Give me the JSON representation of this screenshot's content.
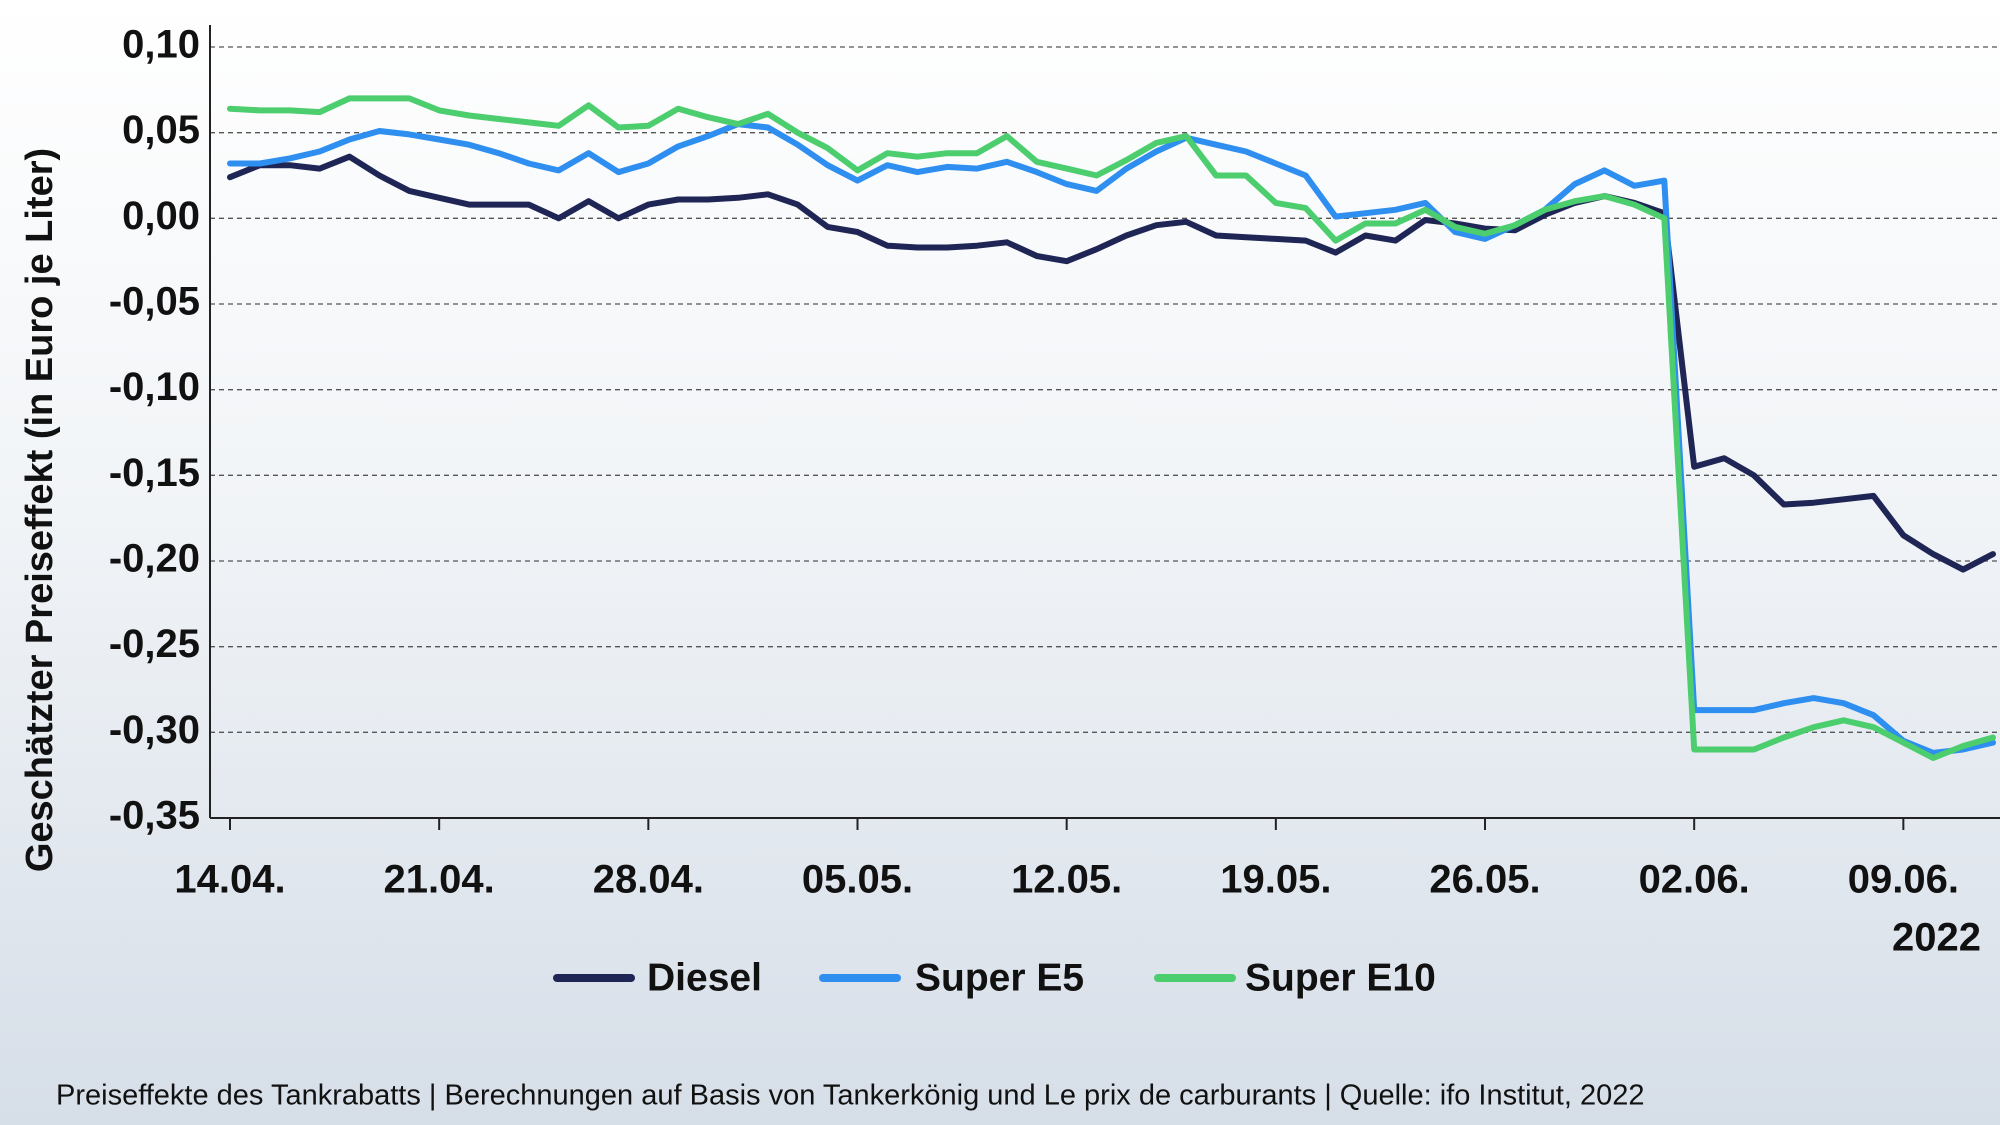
{
  "chart_data": {
    "type": "line",
    "y_label": "Geschätzter Preiseffekt (in Euro je Liter)",
    "x_year_label": "2022",
    "footer": "Preiseffekte des Tankrabatts | Berechnungen auf Basis von Tankerkönig und Le prix de carburants | Quelle: ifo Institut, 2022",
    "x": [
      "2022-04-14",
      "2022-04-15",
      "2022-04-16",
      "2022-04-17",
      "2022-04-18",
      "2022-04-19",
      "2022-04-20",
      "2022-04-21",
      "2022-04-22",
      "2022-04-23",
      "2022-04-24",
      "2022-04-25",
      "2022-04-26",
      "2022-04-27",
      "2022-04-28",
      "2022-04-29",
      "2022-04-30",
      "2022-05-01",
      "2022-05-02",
      "2022-05-03",
      "2022-05-04",
      "2022-05-05",
      "2022-05-06",
      "2022-05-07",
      "2022-05-08",
      "2022-05-09",
      "2022-05-10",
      "2022-05-11",
      "2022-05-12",
      "2022-05-13",
      "2022-05-14",
      "2022-05-15",
      "2022-05-16",
      "2022-05-17",
      "2022-05-18",
      "2022-05-19",
      "2022-05-20",
      "2022-05-21",
      "2022-05-22",
      "2022-05-23",
      "2022-05-24",
      "2022-05-25",
      "2022-05-26",
      "2022-05-27",
      "2022-05-28",
      "2022-05-29",
      "2022-05-30",
      "2022-05-31",
      "2022-06-01",
      "2022-06-02",
      "2022-06-03",
      "2022-06-04",
      "2022-06-05",
      "2022-06-06",
      "2022-06-07",
      "2022-06-08",
      "2022-06-09",
      "2022-06-10",
      "2022-06-11",
      "2022-06-12"
    ],
    "series": [
      {
        "name": "Diesel",
        "color": "#1f2555",
        "values": [
          0.024,
          0.031,
          0.031,
          0.029,
          0.036,
          0.025,
          0.016,
          0.012,
          0.008,
          0.008,
          0.008,
          0.0,
          0.01,
          0.0,
          0.008,
          0.011,
          0.011,
          0.012,
          0.014,
          0.008,
          -0.005,
          -0.008,
          -0.016,
          -0.017,
          -0.017,
          -0.016,
          -0.014,
          -0.022,
          -0.025,
          -0.018,
          -0.01,
          -0.004,
          -0.002,
          -0.01,
          -0.011,
          -0.012,
          -0.013,
          -0.02,
          -0.01,
          -0.013,
          -0.001,
          -0.003,
          -0.006,
          -0.007,
          0.002,
          0.009,
          0.013,
          0.009,
          0.003,
          -0.145,
          -0.14,
          -0.15,
          -0.167,
          -0.166,
          -0.164,
          -0.162,
          -0.185,
          -0.196,
          -0.205,
          -0.196
        ]
      },
      {
        "name": "Super E5",
        "color": "#2e8ff0",
        "values": [
          0.032,
          0.032,
          0.035,
          0.039,
          0.046,
          0.051,
          0.049,
          0.046,
          0.043,
          0.038,
          0.032,
          0.028,
          0.038,
          0.027,
          0.032,
          0.042,
          0.048,
          0.055,
          0.053,
          0.043,
          0.031,
          0.022,
          0.031,
          0.027,
          0.03,
          0.029,
          0.033,
          0.027,
          0.02,
          0.016,
          0.029,
          0.039,
          0.047,
          0.043,
          0.039,
          0.032,
          0.025,
          0.001,
          0.003,
          0.005,
          0.009,
          -0.008,
          -0.012,
          -0.004,
          0.005,
          0.02,
          0.028,
          0.019,
          0.022,
          -0.287,
          -0.287,
          -0.287,
          -0.283,
          -0.28,
          -0.283,
          -0.29,
          -0.305,
          -0.312,
          -0.31,
          -0.306
        ]
      },
      {
        "name": "Super E10",
        "color": "#4ccd6e",
        "values": [
          0.064,
          0.063,
          0.063,
          0.062,
          0.07,
          0.07,
          0.07,
          0.063,
          0.06,
          0.058,
          0.056,
          0.054,
          0.066,
          0.053,
          0.054,
          0.064,
          0.059,
          0.055,
          0.061,
          0.05,
          0.041,
          0.028,
          0.038,
          0.036,
          0.038,
          0.038,
          0.048,
          0.033,
          0.029,
          0.025,
          0.034,
          0.044,
          0.048,
          0.025,
          0.025,
          0.009,
          0.006,
          -0.013,
          -0.003,
          -0.003,
          0.005,
          -0.005,
          -0.009,
          -0.004,
          0.005,
          0.01,
          0.013,
          0.008,
          0.0,
          -0.31,
          -0.31,
          -0.31,
          -0.303,
          -0.297,
          -0.293,
          -0.297,
          -0.306,
          -0.315,
          -0.308,
          -0.303
        ]
      }
    ],
    "xlim": [
      "2022-04-14",
      "2022-06-12"
    ],
    "xticks": [
      {
        "value": "2022-04-14",
        "label": "14.04."
      },
      {
        "value": "2022-04-21",
        "label": "21.04."
      },
      {
        "value": "2022-04-28",
        "label": "28.04."
      },
      {
        "value": "2022-05-05",
        "label": "05.05."
      },
      {
        "value": "2022-05-12",
        "label": "12.05."
      },
      {
        "value": "2022-05-19",
        "label": "19.05."
      },
      {
        "value": "2022-05-26",
        "label": "26.05."
      },
      {
        "value": "2022-06-02",
        "label": "02.06."
      },
      {
        "value": "2022-06-09",
        "label": "09.06."
      }
    ],
    "ylim": [
      -0.35,
      0.1
    ],
    "yticks": [
      {
        "value": 0.1,
        "label": "0,10"
      },
      {
        "value": 0.05,
        "label": "0,05"
      },
      {
        "value": 0,
        "label": "0,00"
      },
      {
        "value": -0.05,
        "label": "-0,05"
      },
      {
        "value": -0.1,
        "label": "-0,10"
      },
      {
        "value": -0.15,
        "label": "-0,15"
      },
      {
        "value": -0.2,
        "label": "-0,20"
      },
      {
        "value": -0.25,
        "label": "-0,25"
      },
      {
        "value": -0.3,
        "label": "-0,30"
      },
      {
        "value": -0.35,
        "label": "-0,35"
      }
    ],
    "grid": true,
    "legend": "bottom"
  }
}
